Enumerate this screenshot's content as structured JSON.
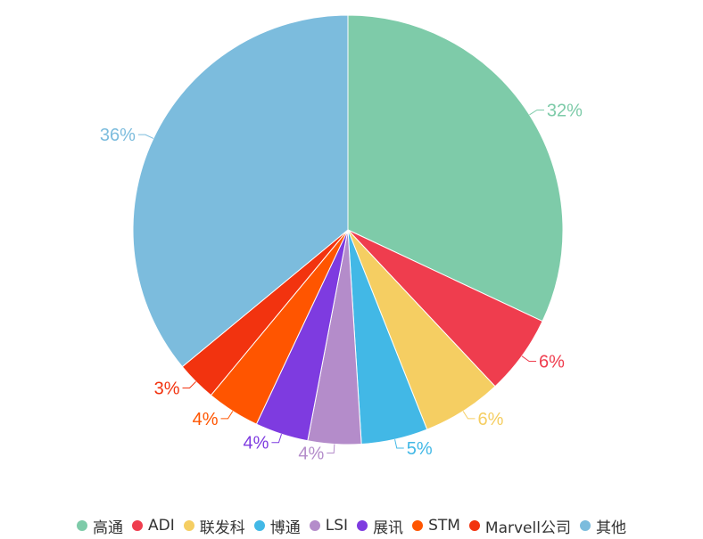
{
  "chart_data": {
    "type": "pie",
    "title": "",
    "series": [
      {
        "name": "高通",
        "value": 32,
        "label": "32%",
        "color": "#7ECBA9"
      },
      {
        "name": "ADI",
        "value": 6,
        "label": "6%",
        "color": "#EF3D4E"
      },
      {
        "name": "联发科",
        "value": 6,
        "label": "6%",
        "color": "#F5CE62"
      },
      {
        "name": "博通",
        "value": 5,
        "label": "5%",
        "color": "#42B8E6"
      },
      {
        "name": "LSI",
        "value": 4,
        "label": "4%",
        "color": "#B48CCA"
      },
      {
        "name": "展讯",
        "value": 4,
        "label": "4%",
        "color": "#7E3BE0"
      },
      {
        "name": "STM",
        "value": 4,
        "label": "4%",
        "color": "#FF5500"
      },
      {
        "name": "Marvell公司",
        "value": 3,
        "label": "3%",
        "color": "#F2330F"
      },
      {
        "name": "其他",
        "value": 36,
        "label": "36%",
        "color": "#7CBCDD"
      }
    ],
    "legend_position": "bottom"
  }
}
